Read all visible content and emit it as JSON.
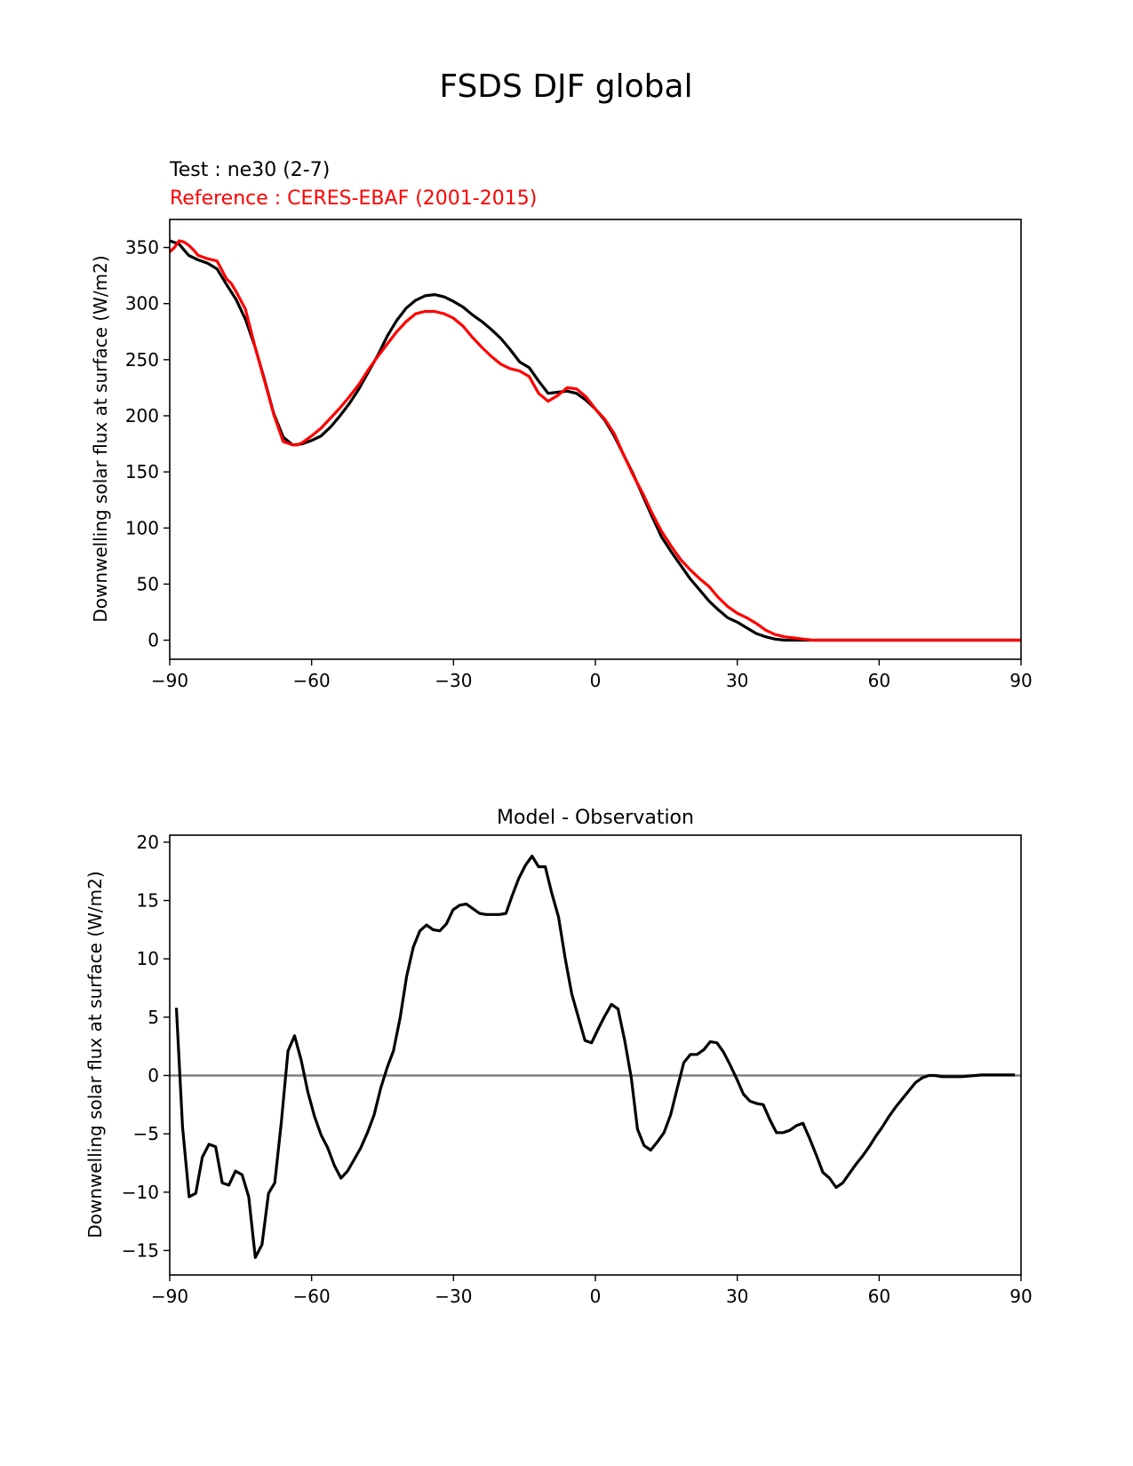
{
  "figure": {
    "title": "FSDS DJF global",
    "test_label": "Test : ne30 (2-7)",
    "reference_label": "Reference : CERES-EBAF (2001-2015)"
  },
  "chart_data": [
    {
      "type": "line",
      "title": "",
      "xlabel": "",
      "ylabel": "Downwelling solar flux at surface (W/m2)",
      "xlim": [
        -90,
        90
      ],
      "ylim": [
        -17,
        375
      ],
      "xticks": [
        -90,
        -60,
        -30,
        0,
        30,
        60,
        90
      ],
      "xtick_labels": [
        "−90",
        "−60",
        "−30",
        "0",
        "30",
        "60",
        "90"
      ],
      "yticks": [
        0,
        50,
        100,
        150,
        200,
        250,
        300,
        350
      ],
      "ytick_labels": [
        "0",
        "50",
        "100",
        "150",
        "200",
        "250",
        "300",
        "350"
      ],
      "grid": false,
      "series": [
        {
          "name": "Test : ne30 (2-7)",
          "color": "#000000",
          "x": [
            -90,
            -88,
            -86,
            -84,
            -82,
            -80,
            -78,
            -76,
            -74,
            -72,
            -70,
            -68,
            -66,
            -64,
            -62,
            -60,
            -58,
            -56,
            -54,
            -52,
            -50,
            -48,
            -46,
            -44,
            -42,
            -40,
            -38,
            -36,
            -34,
            -32,
            -30,
            -28,
            -26,
            -24,
            -22,
            -20,
            -18,
            -16,
            -14,
            -12,
            -10,
            -8,
            -6,
            -4,
            -2,
            0,
            2,
            4,
            6,
            8,
            10,
            12,
            14,
            16,
            18,
            20,
            22,
            24,
            26,
            28,
            30,
            32,
            34,
            36,
            38,
            40,
            42,
            44,
            46,
            48,
            50,
            52,
            54,
            56,
            58,
            60,
            62,
            64,
            66,
            68,
            70,
            72,
            74,
            76,
            78,
            80,
            82,
            84,
            86,
            88,
            90
          ],
          "y": [
            356,
            353,
            343,
            339,
            336,
            331,
            317,
            304,
            286,
            262,
            233,
            202,
            181,
            174,
            175,
            178,
            182,
            190,
            200,
            211,
            224,
            239,
            254,
            271,
            285,
            296,
            303,
            307,
            308,
            306,
            302,
            297,
            290,
            284,
            277,
            269,
            259,
            248,
            243,
            231,
            220,
            221,
            222,
            220,
            214,
            206,
            196,
            182,
            165,
            148,
            129,
            110,
            92,
            79,
            67,
            55,
            45,
            35,
            27,
            20,
            16,
            11,
            6,
            3,
            1,
            0,
            0,
            0,
            0,
            0,
            0,
            0,
            0,
            0,
            0,
            0,
            0,
            0,
            0,
            0,
            0,
            0,
            0,
            0,
            0,
            0,
            0,
            0,
            0,
            0,
            0
          ]
        },
        {
          "name": "Reference : CERES-EBAF (2001-2015)",
          "color": "#ff0000",
          "x": [
            -90,
            -89,
            -88,
            -87,
            -86,
            -85,
            -84,
            -82,
            -80,
            -78,
            -77,
            -76,
            -74,
            -72,
            -70,
            -68,
            -66,
            -64,
            -63,
            -62,
            -60,
            -58,
            -56,
            -54,
            -52,
            -50,
            -48,
            -46,
            -44,
            -42,
            -40,
            -38,
            -36,
            -34,
            -32,
            -30,
            -28,
            -26,
            -24,
            -22,
            -20,
            -18,
            -16,
            -14,
            -12,
            -10,
            -8,
            -6,
            -4,
            -2,
            0,
            2,
            4,
            6,
            8,
            10,
            12,
            14,
            16,
            18,
            20,
            22,
            24,
            26,
            28,
            30,
            32,
            34,
            36,
            38,
            40,
            42,
            44,
            46,
            48,
            50,
            52,
            54,
            56,
            58,
            60,
            62,
            64,
            66,
            68,
            70,
            72,
            74,
            76,
            78,
            80,
            82,
            84,
            86,
            88,
            90
          ],
          "y": [
            346,
            350,
            356,
            355,
            352,
            348,
            343,
            340,
            338,
            322,
            318,
            311,
            295,
            262,
            232,
            201,
            177,
            174,
            174,
            176,
            182,
            189,
            198,
            207,
            217,
            228,
            241,
            253,
            264,
            275,
            284,
            291,
            293,
            293,
            291,
            287,
            280,
            270,
            261,
            253,
            246,
            242,
            240,
            235,
            220,
            213,
            218,
            225,
            224,
            217,
            206,
            197,
            184,
            165,
            147,
            131,
            113,
            97,
            84,
            72,
            63,
            55,
            48,
            38,
            30,
            24,
            20,
            15,
            9,
            5,
            3,
            2,
            1,
            0,
            0,
            0,
            0,
            0,
            0,
            0,
            0,
            0,
            0,
            0,
            0,
            0,
            0,
            0,
            0,
            0,
            0,
            0,
            0,
            0,
            0,
            0
          ]
        }
      ]
    },
    {
      "type": "line",
      "title": "Model - Observation",
      "xlabel": "",
      "ylabel": "Downwelling solar flux at surface (W/m2)",
      "xlim": [
        -90,
        90
      ],
      "ylim": [
        -17.1,
        20.6
      ],
      "xticks": [
        -90,
        -60,
        -30,
        0,
        30,
        60,
        90
      ],
      "xtick_labels": [
        "−90",
        "−60",
        "−30",
        "0",
        "30",
        "60",
        "90"
      ],
      "yticks": [
        -15,
        -10,
        -5,
        0,
        5,
        10,
        15,
        20
      ],
      "ytick_labels": [
        "−15",
        "−10",
        "−5",
        "0",
        "5",
        "10",
        "15",
        "20"
      ],
      "grid": false,
      "zero_line_color": "#808080",
      "series": [
        {
          "name": "",
          "color": "#000000",
          "x": [
            -88.6,
            -87.3,
            -85.9,
            -84.5,
            -83.1,
            -81.7,
            -80.3,
            -78.9,
            -77.5,
            -76.1,
            -74.7,
            -73.3,
            -71.9,
            -70.5,
            -69.1,
            -67.8,
            -66.4,
            -65.0,
            -63.6,
            -62.2,
            -60.8,
            -59.4,
            -58.0,
            -56.6,
            -55.2,
            -53.8,
            -52.4,
            -51.0,
            -49.6,
            -48.2,
            -46.8,
            -45.4,
            -44.0,
            -42.7,
            -41.3,
            -39.9,
            -38.5,
            -37.1,
            -35.7,
            -34.3,
            -32.9,
            -31.5,
            -30.1,
            -28.7,
            -27.3,
            -25.9,
            -24.5,
            -23.1,
            -21.7,
            -20.3,
            -18.9,
            -17.6,
            -16.2,
            -14.8,
            -13.4,
            -12.0,
            -10.6,
            -9.2,
            -7.8,
            -6.4,
            -5.0,
            -3.6,
            -2.2,
            -0.8,
            0.6,
            2.0,
            3.4,
            4.8,
            6.2,
            7.6,
            8.9,
            10.3,
            11.7,
            13.1,
            14.5,
            15.9,
            17.3,
            18.7,
            20.1,
            21.5,
            22.9,
            24.3,
            25.7,
            27.1,
            28.5,
            29.9,
            31.3,
            32.7,
            34.1,
            35.5,
            36.9,
            38.3,
            39.7,
            41.1,
            42.5,
            43.9,
            45.3,
            46.7,
            48.1,
            49.5,
            50.9,
            52.3,
            53.7,
            55.1,
            56.5,
            57.9,
            59.3,
            60.7,
            62.1,
            63.5,
            64.9,
            66.3,
            67.7,
            69.1,
            70.5,
            71.9,
            73.3,
            74.7,
            76.1,
            77.5,
            78.9,
            80.3,
            81.7,
            83.1,
            84.5,
            85.9,
            87.3,
            88.7
          ],
          "y": [
            5.8,
            -4.4,
            -10.4,
            -10.1,
            -7.0,
            -5.9,
            -6.1,
            -9.2,
            -9.4,
            -8.2,
            -8.5,
            -10.4,
            -15.6,
            -14.5,
            -10.1,
            -9.2,
            -4.0,
            2.1,
            3.4,
            1.3,
            -1.4,
            -3.5,
            -5.1,
            -6.2,
            -7.7,
            -8.8,
            -8.2,
            -7.2,
            -6.2,
            -4.9,
            -3.4,
            -1.1,
            0.7,
            2.1,
            4.9,
            8.5,
            11.0,
            12.4,
            12.9,
            12.5,
            12.4,
            13.0,
            14.2,
            14.6,
            14.7,
            14.3,
            13.9,
            13.8,
            13.8,
            13.8,
            13.9,
            15.4,
            16.9,
            18.0,
            18.8,
            17.9,
            17.9,
            15.6,
            13.6,
            10.1,
            7.0,
            5.0,
            3.0,
            2.8,
            4.0,
            5.1,
            6.1,
            5.7,
            3.0,
            -0.2,
            -4.6,
            -6.0,
            -6.4,
            -5.7,
            -4.9,
            -3.4,
            -1.1,
            1.1,
            1.8,
            1.8,
            2.2,
            2.9,
            2.8,
            2.0,
            0.9,
            -0.3,
            -1.6,
            -2.2,
            -2.4,
            -2.5,
            -3.8,
            -4.9,
            -4.9,
            -4.7,
            -4.3,
            -4.1,
            -5.4,
            -6.8,
            -8.3,
            -8.8,
            -9.6,
            -9.2,
            -8.4,
            -7.6,
            -6.9,
            -6.1,
            -5.2,
            -4.4,
            -3.5,
            -2.7,
            -2.0,
            -1.3,
            -0.6,
            -0.2,
            0.0,
            0.0,
            -0.1,
            -0.1,
            -0.1,
            -0.1,
            -0.05,
            0.0,
            0.05,
            0.05,
            0.05,
            0.05,
            0.05,
            0.05
          ]
        }
      ]
    }
  ]
}
